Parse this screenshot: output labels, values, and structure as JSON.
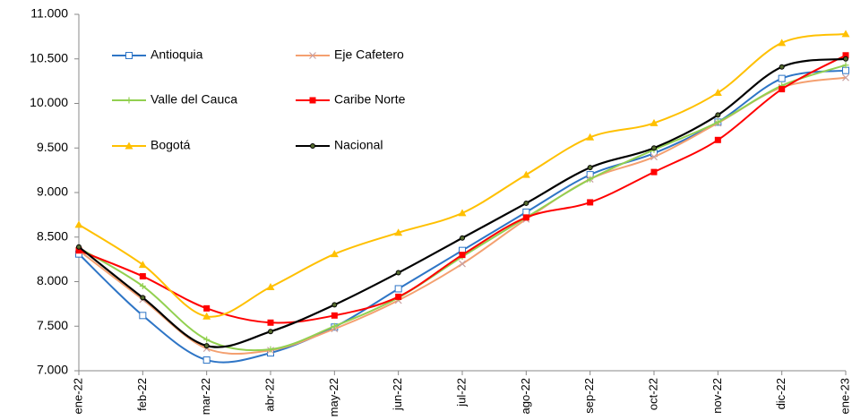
{
  "chart_data": {
    "type": "line",
    "categories": [
      "ene-22",
      "feb-22",
      "mar-22",
      "abr-22",
      "may-22",
      "jun-22",
      "jul-22",
      "ago-22",
      "sep-22",
      "oct-22",
      "nov-22",
      "dic-22",
      "ene-23"
    ],
    "ylim": [
      7000,
      11000
    ],
    "yticks": [
      {
        "value": 7000,
        "label": "7.000"
      },
      {
        "value": 7500,
        "label": "7.500"
      },
      {
        "value": 8000,
        "label": "8.000"
      },
      {
        "value": 8500,
        "label": "8.500"
      },
      {
        "value": 9000,
        "label": "9.000"
      },
      {
        "value": 9500,
        "label": "9.500"
      },
      {
        "value": 10000,
        "label": "10.000"
      },
      {
        "value": 10500,
        "label": "10.500"
      },
      {
        "value": 11000,
        "label": "11.000"
      }
    ],
    "grid": false,
    "legend": "top-left",
    "series": [
      {
        "name": "Antioquia",
        "color": "#2e75c6",
        "marker": "square-open",
        "values": [
          8310,
          7620,
          7120,
          7200,
          7490,
          7920,
          8350,
          8780,
          9200,
          9440,
          9790,
          10280,
          10370
        ]
      },
      {
        "name": "Eje Cafetero",
        "color": "#f4a070",
        "marker": "x",
        "values": [
          8350,
          7800,
          7250,
          7230,
          7470,
          7790,
          8200,
          8700,
          9150,
          9400,
          9780,
          10180,
          10290
        ]
      },
      {
        "name": "Valle del Cauca",
        "color": "#92d050",
        "marker": "plus",
        "values": [
          8380,
          7950,
          7350,
          7240,
          7500,
          7820,
          8280,
          8720,
          9150,
          9480,
          9790,
          10200,
          10430
        ]
      },
      {
        "name": "Caribe Norte",
        "color": "#ff0000",
        "marker": "square",
        "values": [
          8350,
          8060,
          7700,
          7540,
          7620,
          7830,
          8300,
          8720,
          8890,
          9230,
          9590,
          10160,
          10540
        ]
      },
      {
        "name": "Bogotá",
        "color": "#ffc000",
        "marker": "triangle",
        "values": [
          8640,
          8190,
          7610,
          7940,
          8310,
          8550,
          8770,
          9200,
          9620,
          9780,
          10120,
          10680,
          10780
        ]
      },
      {
        "name": "Nacional",
        "color": "#000000",
        "marker": "circle",
        "values": [
          8390,
          7820,
          7280,
          7440,
          7740,
          8100,
          8490,
          8880,
          9280,
          9500,
          9870,
          10410,
          10500
        ]
      }
    ]
  }
}
